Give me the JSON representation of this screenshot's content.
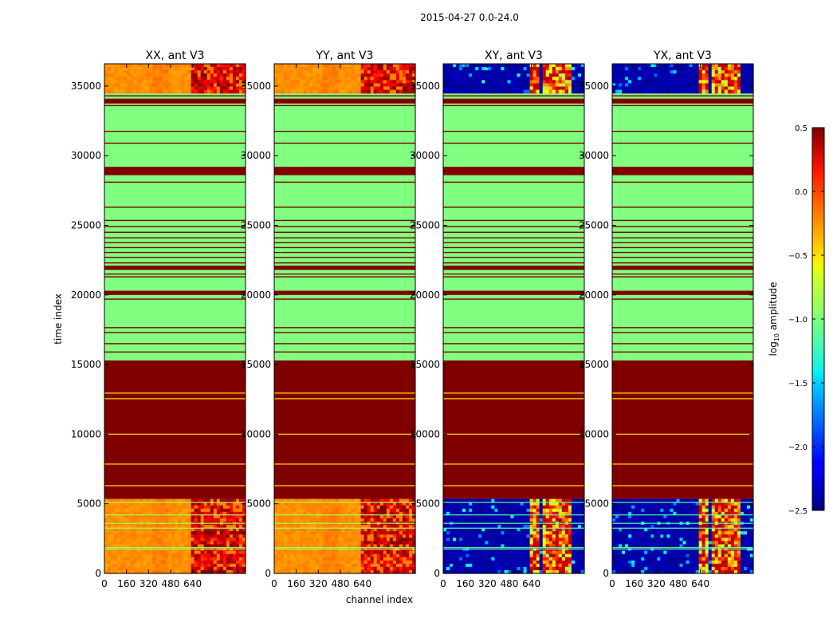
{
  "chart_data": {
    "type": "heatmap",
    "suptitle": "2015-04-27 0.0-24.0",
    "xlabel": "channel index",
    "ylabel": "time index",
    "x_ticks": [
      0,
      160,
      320,
      480,
      640
    ],
    "x_tick_labels": [
      "0",
      "160",
      "320",
      "480",
      "640"
    ],
    "xlim": [
      0,
      1024
    ],
    "y_ticks": [
      0,
      5000,
      10000,
      15000,
      20000,
      25000,
      30000,
      35000
    ],
    "ylim": [
      0,
      36600
    ],
    "colorbar": {
      "label": "log$_{10}$ amplitude",
      "label_main": "log",
      "label_sub": "10",
      "label_rest": " amplitude",
      "range": [
        -2.5,
        0.5
      ],
      "ticks": [
        0.5,
        0.0,
        -0.5,
        -1.0,
        -1.5,
        -2.0,
        -2.5
      ],
      "tick_labels": [
        "0.5",
        "0.0",
        "−0.5",
        "−1.0",
        "−1.5",
        "−2.0",
        "−2.5"
      ],
      "colormap": "jet"
    },
    "panels": [
      {
        "title": "XX, ant V3",
        "kind": "auto"
      },
      {
        "title": "YY, ant V3",
        "kind": "auto"
      },
      {
        "title": "XY, ant V3",
        "kind": "cross"
      },
      {
        "title": "YX, ant V3",
        "kind": "cross"
      }
    ],
    "time_bands": [
      {
        "from": 0,
        "to": 5350,
        "state": "data"
      },
      {
        "from": 5350,
        "to": 15300,
        "state": "saturated_high"
      },
      {
        "from": 15300,
        "to": 28400,
        "state": "flagged_mid"
      },
      {
        "from": 28400,
        "to": 29300,
        "state": "flagged_mid"
      },
      {
        "from": 29300,
        "to": 34500,
        "state": "flagged_mid"
      },
      {
        "from": 34500,
        "to": 36600,
        "state": "data"
      }
    ],
    "stripe_lines": {
      "saturated_band_light_lines": [
        6300,
        7850,
        10000,
        12550,
        12950
      ],
      "mid_band_dark_lines": [
        15900,
        16500,
        17300,
        17650,
        19700,
        20100,
        21300,
        21500,
        22300,
        22700,
        23050,
        23400,
        23750,
        24100,
        24500,
        24900,
        25350,
        26300,
        28100,
        29100,
        30900,
        31750,
        33600,
        34000,
        34300
      ],
      "mid_band_thick_dark": [
        [
          20000,
          20300
        ],
        [
          21800,
          22100
        ],
        [
          28600,
          29200
        ],
        [
          33750,
          34100
        ]
      ],
      "low_band_lines": [
        1750,
        1850,
        3250,
        3600,
        4200,
        5100
      ]
    },
    "auto_levels": {
      "base_low_channels": -0.3,
      "base_high_channels": 0.2
    },
    "cross_levels": {
      "base": -2.45,
      "active_channel_groups": [
        [
          640,
          700
        ],
        [
          720,
          780
        ],
        [
          800,
          850
        ],
        [
          870,
          930
        ]
      ]
    }
  }
}
